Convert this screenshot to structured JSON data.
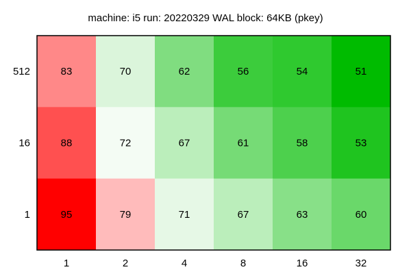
{
  "chart_data": {
    "type": "heatmap",
    "title": "machine: i5 run: 20220329 WAL block: 64KB (pkey)",
    "xlabel": "",
    "ylabel": "",
    "x_categories": [
      "1",
      "2",
      "4",
      "8",
      "16",
      "32"
    ],
    "y_categories": [
      "512",
      "16",
      "1"
    ],
    "values": [
      [
        83,
        70,
        62,
        56,
        54,
        51
      ],
      [
        88,
        72,
        67,
        61,
        58,
        53
      ],
      [
        95,
        79,
        71,
        67,
        63,
        60
      ]
    ],
    "colors": [
      [
        "#ff8888",
        "#dbf5db",
        "#80dd80",
        "#3ccc3c",
        "#2fc92f",
        "#00bb00"
      ],
      [
        "#ff5050",
        "#f4fcf4",
        "#bbeebb",
        "#76db76",
        "#4dd04d",
        "#1fc41f"
      ],
      [
        "#ff0000",
        "#ffbbbb",
        "#e6f8e6",
        "#bbeebb",
        "#88e088",
        "#6ad86a"
      ]
    ]
  }
}
